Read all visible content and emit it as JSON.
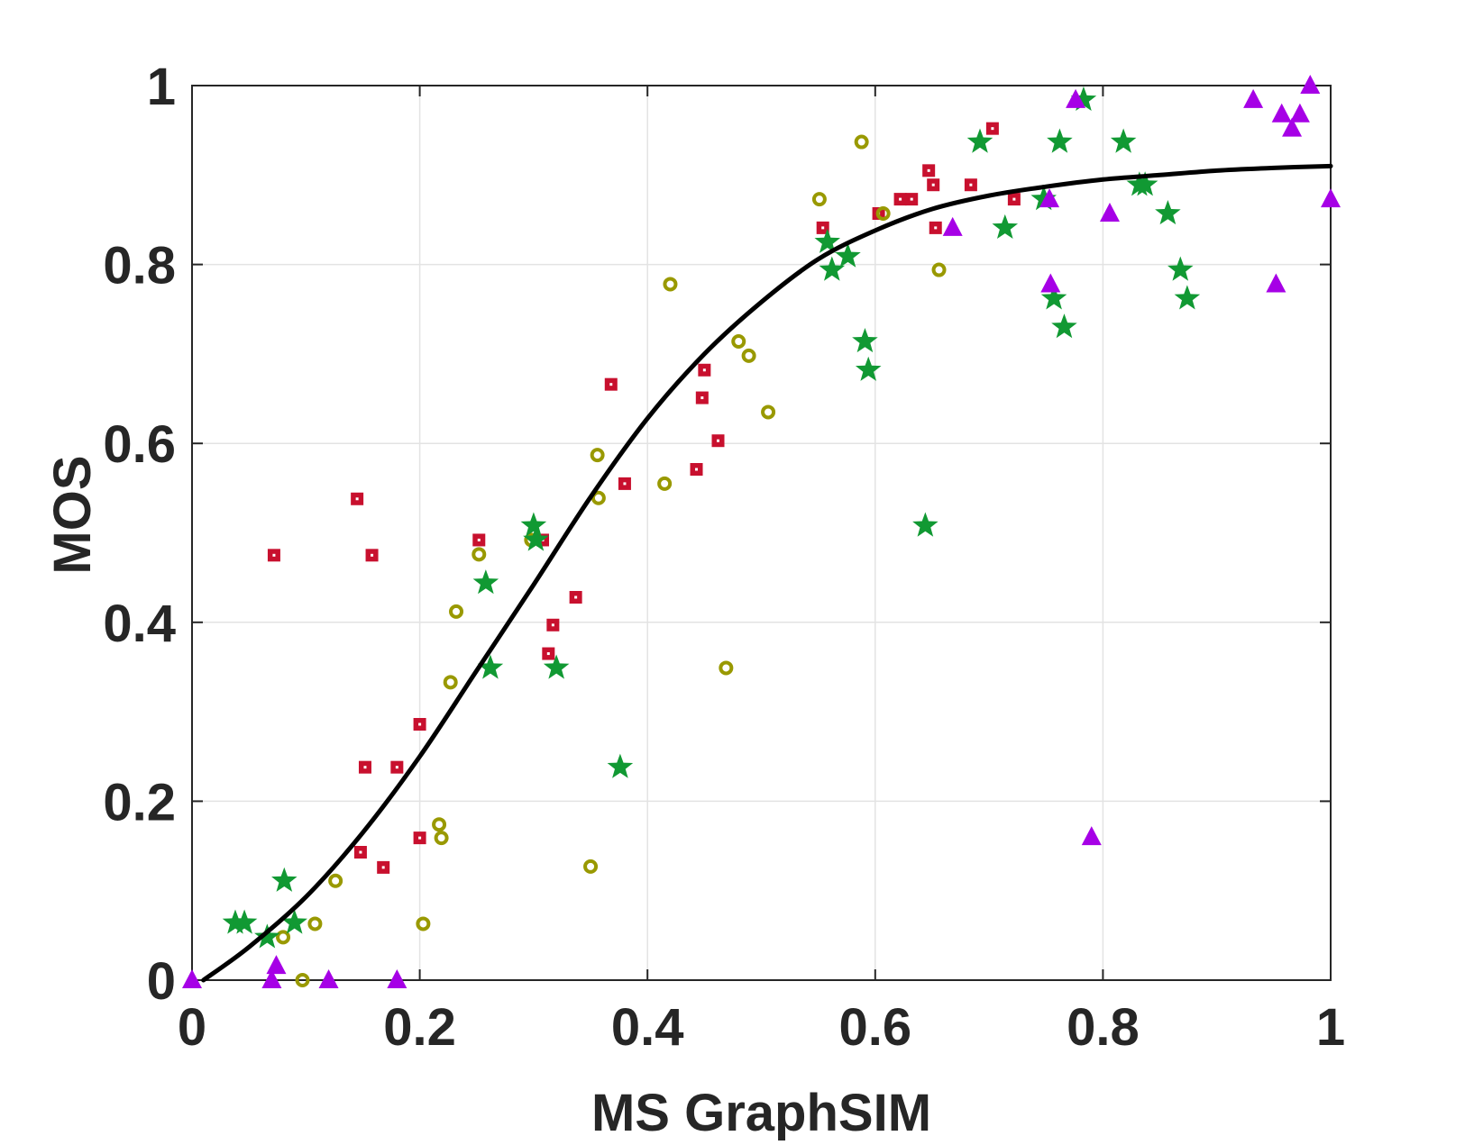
{
  "chart_data": {
    "type": "scatter",
    "title": "",
    "xlabel": "MS GraphSIM",
    "ylabel": "MOS",
    "xlim": [
      0,
      1
    ],
    "ylim": [
      0,
      1
    ],
    "grid": true,
    "xticks": [
      0,
      0.2,
      0.4,
      0.6,
      0.8,
      1
    ],
    "yticks": [
      0,
      0.2,
      0.4,
      0.6,
      0.8,
      1
    ],
    "xtick_labels": [
      "0",
      "0.2",
      "0.4",
      "0.6",
      "0.8",
      "1"
    ],
    "ytick_labels": [
      "0",
      "0.2",
      "0.4",
      "0.6",
      "0.8",
      "1"
    ],
    "colors": {
      "square_series": "#c8102e",
      "circle_series": "#999900",
      "star_series": "#119933",
      "triangle_series": "#a600e6",
      "fit_curve": "#000000"
    },
    "series": [
      {
        "name": "square_series",
        "marker": "square",
        "points": [
          [
            0.072,
            0.475
          ],
          [
            0.145,
            0.538
          ],
          [
            0.158,
            0.475
          ],
          [
            0.148,
            0.143
          ],
          [
            0.152,
            0.238
          ],
          [
            0.168,
            0.126
          ],
          [
            0.18,
            0.238
          ],
          [
            0.2,
            0.286
          ],
          [
            0.2,
            0.159
          ],
          [
            0.252,
            0.492
          ],
          [
            0.308,
            0.492
          ],
          [
            0.313,
            0.365
          ],
          [
            0.317,
            0.397
          ],
          [
            0.337,
            0.428
          ],
          [
            0.368,
            0.666
          ],
          [
            0.38,
            0.555
          ],
          [
            0.443,
            0.571
          ],
          [
            0.448,
            0.651
          ],
          [
            0.45,
            0.682
          ],
          [
            0.462,
            0.603
          ],
          [
            0.554,
            0.841
          ],
          [
            0.603,
            0.857
          ],
          [
            0.622,
            0.873
          ],
          [
            0.632,
            0.873
          ],
          [
            0.647,
            0.905
          ],
          [
            0.651,
            0.889
          ],
          [
            0.653,
            0.841
          ],
          [
            0.684,
            0.889
          ],
          [
            0.703,
            0.952
          ],
          [
            0.722,
            0.873
          ]
        ]
      },
      {
        "name": "circle_series",
        "marker": "circle",
        "points": [
          [
            0.08,
            0.048
          ],
          [
            0.097,
            0.0
          ],
          [
            0.108,
            0.063
          ],
          [
            0.126,
            0.111
          ],
          [
            0.203,
            0.063
          ],
          [
            0.217,
            0.174
          ],
          [
            0.219,
            0.159
          ],
          [
            0.227,
            0.333
          ],
          [
            0.232,
            0.412
          ],
          [
            0.252,
            0.476
          ],
          [
            0.298,
            0.492
          ],
          [
            0.35,
            0.127
          ],
          [
            0.356,
            0.587
          ],
          [
            0.357,
            0.539
          ],
          [
            0.415,
            0.555
          ],
          [
            0.42,
            0.778
          ],
          [
            0.469,
            0.349
          ],
          [
            0.48,
            0.714
          ],
          [
            0.489,
            0.698
          ],
          [
            0.506,
            0.635
          ],
          [
            0.551,
            0.873
          ],
          [
            0.588,
            0.937
          ],
          [
            0.607,
            0.857
          ],
          [
            0.656,
            0.794
          ]
        ]
      },
      {
        "name": "star_series",
        "marker": "star",
        "points": [
          [
            0.038,
            0.064
          ],
          [
            0.046,
            0.064
          ],
          [
            0.066,
            0.048
          ],
          [
            0.081,
            0.111
          ],
          [
            0.09,
            0.064
          ],
          [
            0.258,
            0.444
          ],
          [
            0.262,
            0.349
          ],
          [
            0.3,
            0.508
          ],
          [
            0.302,
            0.492
          ],
          [
            0.32,
            0.349
          ],
          [
            0.376,
            0.238
          ],
          [
            0.558,
            0.825
          ],
          [
            0.562,
            0.794
          ],
          [
            0.576,
            0.809
          ],
          [
            0.591,
            0.714
          ],
          [
            0.594,
            0.682
          ],
          [
            0.644,
            0.508
          ],
          [
            0.692,
            0.937
          ],
          [
            0.714,
            0.841
          ],
          [
            0.748,
            0.873
          ],
          [
            0.757,
            0.762
          ],
          [
            0.762,
            0.937
          ],
          [
            0.766,
            0.73
          ],
          [
            0.783,
            0.984
          ],
          [
            0.818,
            0.937
          ],
          [
            0.832,
            0.889
          ],
          [
            0.837,
            0.889
          ],
          [
            0.857,
            0.857
          ],
          [
            0.868,
            0.794
          ],
          [
            0.874,
            0.762
          ]
        ]
      },
      {
        "name": "triangle_series",
        "marker": "triangle",
        "points": [
          [
            0.0,
            0.0
          ],
          [
            0.07,
            0.0
          ],
          [
            0.074,
            0.016
          ],
          [
            0.12,
            0.0
          ],
          [
            0.18,
            0.0
          ],
          [
            0.668,
            0.841
          ],
          [
            0.753,
            0.873
          ],
          [
            0.754,
            0.778
          ],
          [
            0.776,
            0.984
          ],
          [
            0.79,
            0.16
          ],
          [
            0.806,
            0.857
          ],
          [
            0.932,
            0.984
          ],
          [
            0.952,
            0.778
          ],
          [
            0.957,
            0.968
          ],
          [
            0.966,
            0.952
          ],
          [
            0.973,
            0.968
          ],
          [
            0.982,
            1.0
          ],
          [
            1.0,
            0.873
          ]
        ]
      }
    ],
    "fit_curve": {
      "name": "logistic fit",
      "x": [
        0.01,
        0.05,
        0.1,
        0.15,
        0.2,
        0.25,
        0.3,
        0.35,
        0.4,
        0.45,
        0.5,
        0.55,
        0.6,
        0.65,
        0.7,
        0.75,
        0.8,
        0.85,
        0.9,
        0.95,
        1.0
      ],
      "y": [
        0.0,
        0.037,
        0.093,
        0.165,
        0.25,
        0.346,
        0.442,
        0.54,
        0.628,
        0.7,
        0.758,
        0.806,
        0.838,
        0.862,
        0.877,
        0.887,
        0.895,
        0.9,
        0.905,
        0.908,
        0.91
      ]
    }
  }
}
